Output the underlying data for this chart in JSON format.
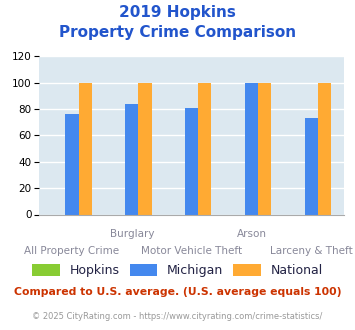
{
  "title_line1": "2019 Hopkins",
  "title_line2": "Property Crime Comparison",
  "title_color": "#2255cc",
  "categories": [
    "All Property Crime",
    "Burglary",
    "Motor Vehicle Theft",
    "Arson",
    "Larceny & Theft"
  ],
  "tick_labels_row1": [
    "",
    "Burglary",
    "",
    "Arson",
    ""
  ],
  "tick_labels_row2": [
    "All Property Crime",
    "",
    "Motor Vehicle Theft",
    "",
    "Larceny & Theft"
  ],
  "series": [
    {
      "name": "Hopkins",
      "color": "#88cc33",
      "values": [
        0,
        0,
        0,
        0,
        0
      ]
    },
    {
      "name": "Michigan",
      "color": "#4488ee",
      "values": [
        76,
        84,
        81,
        100,
        73
      ]
    },
    {
      "name": "National",
      "color": "#ffaa33",
      "values": [
        100,
        100,
        100,
        100,
        100
      ]
    }
  ],
  "ylim": [
    0,
    120
  ],
  "yticks": [
    0,
    20,
    40,
    60,
    80,
    100,
    120
  ],
  "bar_width": 0.22,
  "plot_bg_color": "#dce8f0",
  "fig_bg_color": "#ffffff",
  "grid_color": "#ffffff",
  "footnote1": "Compared to U.S. average. (U.S. average equals 100)",
  "footnote2": "© 2025 CityRating.com - https://www.cityrating.com/crime-statistics/",
  "footnote1_color": "#cc3300",
  "footnote2_color": "#999999",
  "footnote2_url_color": "#3366cc",
  "legend_colors": [
    "#88cc33",
    "#4488ee",
    "#ffaa33"
  ],
  "legend_labels": [
    "Hopkins",
    "Michigan",
    "National"
  ],
  "label_color": "#888899"
}
